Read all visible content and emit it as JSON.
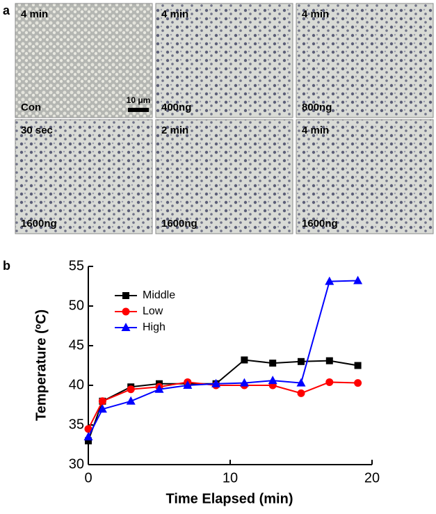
{
  "panel_a": {
    "label": "a",
    "scale_bar": "10 μm",
    "panels": [
      {
        "top": "4 min",
        "bottom": "Con"
      },
      {
        "top": "4 min",
        "bottom": "400ng"
      },
      {
        "top": "4 min",
        "bottom": "800ng"
      },
      {
        "top": "30 sec",
        "bottom": "1600ng"
      },
      {
        "top": "2 min",
        "bottom": "1600ng"
      },
      {
        "top": "4 min",
        "bottom": "1600ng"
      }
    ]
  },
  "panel_b": {
    "label": "b"
  },
  "chart_data": {
    "type": "line",
    "xlabel": "Time Elapsed (min)",
    "ylabel": "Temperature (ºC)",
    "x": [
      0,
      1,
      3,
      5,
      7,
      9,
      11,
      13,
      15,
      17,
      19
    ],
    "series": [
      {
        "name": "Middle",
        "color": "#000000",
        "marker": "square",
        "values": [
          33,
          38,
          39.8,
          40.2,
          40.2,
          40.2,
          43.2,
          42.8,
          43,
          43.1,
          42.5
        ]
      },
      {
        "name": "Low",
        "color": "#ff0000",
        "marker": "circle",
        "values": [
          34.5,
          38,
          39.5,
          39.8,
          40.4,
          40,
          40,
          40,
          39,
          40.4,
          40.3
        ]
      },
      {
        "name": "High",
        "color": "#0000ff",
        "marker": "triangle",
        "values": [
          33.5,
          37,
          38,
          39.5,
          40,
          40.2,
          40.3,
          40.6,
          40.3,
          53.1,
          53.2
        ]
      }
    ],
    "xlim": [
      0,
      20
    ],
    "xticks": [
      0,
      10,
      20
    ],
    "ylim": [
      30,
      55
    ],
    "yticks": [
      30,
      35,
      40,
      45,
      50,
      55
    ],
    "legend": "upper left"
  }
}
